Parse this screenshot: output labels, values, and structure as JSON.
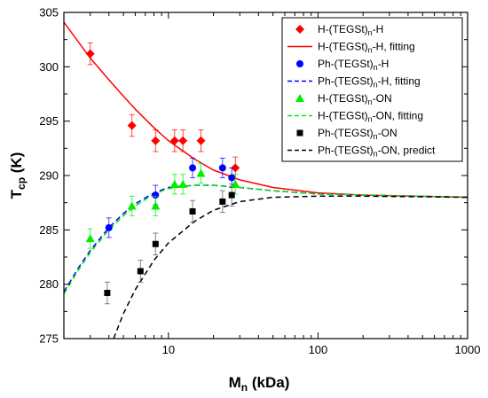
{
  "chart_data": {
    "type": "scatter",
    "x_scale": "log",
    "xlim": [
      2,
      1000
    ],
    "ylim": [
      275,
      305
    ],
    "x_ticks": [
      10,
      100,
      1000
    ],
    "x_tick_labels": [
      "10",
      "100",
      "1000"
    ],
    "y_ticks": [
      275,
      280,
      285,
      290,
      295,
      300,
      305
    ],
    "y_tick_labels": [
      "275",
      "280",
      "285",
      "290",
      "295",
      "300",
      "305"
    ],
    "xlabel": {
      "main": "M",
      "sub": "n",
      "rest": " (kDa)"
    },
    "ylabel": {
      "main": "T",
      "sub": "cp",
      "rest": " (K)"
    },
    "legend_position": "top-right",
    "series": [
      {
        "name": {
          "pre": "H-(TEGSt)",
          "sub": "n",
          "post": "-H"
        },
        "kind": "scatter",
        "marker": "diamond",
        "color": "#ff0000",
        "points": [
          {
            "x": 3.0,
            "y": 301.2,
            "err": 1.0
          },
          {
            "x": 5.7,
            "y": 294.6,
            "err": 1.0
          },
          {
            "x": 8.2,
            "y": 293.2,
            "err": 1.0
          },
          {
            "x": 11.0,
            "y": 293.2,
            "err": 1.0
          },
          {
            "x": 12.5,
            "y": 293.2,
            "err": 1.0
          },
          {
            "x": 16.5,
            "y": 293.2,
            "err": 1.0
          },
          {
            "x": 28.0,
            "y": 290.7,
            "err": 1.0
          }
        ]
      },
      {
        "name": {
          "pre": "H-(TEGSt)",
          "sub": "n",
          "post": "-H, fitting"
        },
        "kind": "line",
        "dash": "solid",
        "color": "#ff0000",
        "points": [
          {
            "x": 2,
            "y": 304.1
          },
          {
            "x": 3,
            "y": 300.8
          },
          {
            "x": 4,
            "y": 298.8
          },
          {
            "x": 5,
            "y": 297.3
          },
          {
            "x": 6,
            "y": 296.1
          },
          {
            "x": 8,
            "y": 294.4
          },
          {
            "x": 10,
            "y": 293.2
          },
          {
            "x": 15,
            "y": 291.5
          },
          {
            "x": 20,
            "y": 290.5
          },
          {
            "x": 30,
            "y": 289.6
          },
          {
            "x": 50,
            "y": 288.9
          },
          {
            "x": 100,
            "y": 288.4
          },
          {
            "x": 200,
            "y": 288.2
          },
          {
            "x": 1000,
            "y": 288.0
          }
        ]
      },
      {
        "name": {
          "pre": "Ph-(TEGSt)",
          "sub": "n",
          "post": "-H"
        },
        "kind": "scatter",
        "marker": "circle",
        "color": "#0000ff",
        "points": [
          {
            "x": 4.0,
            "y": 285.2,
            "err": 0.9
          },
          {
            "x": 8.2,
            "y": 288.2,
            "err": 0.9
          },
          {
            "x": 14.5,
            "y": 290.7,
            "err": 0.9
          },
          {
            "x": 23.0,
            "y": 290.7,
            "err": 0.9
          },
          {
            "x": 26.5,
            "y": 289.8,
            "err": 0.9
          }
        ]
      },
      {
        "name": {
          "pre": "Ph-(TEGSt)",
          "sub": "n",
          "post": "-H, fitting"
        },
        "kind": "line",
        "dash": "dashed",
        "color": "#0000ff",
        "points": [
          {
            "x": 2,
            "y": 279.3
          },
          {
            "x": 2.5,
            "y": 281.5
          },
          {
            "x": 3,
            "y": 283.1
          },
          {
            "x": 4,
            "y": 285.2
          },
          {
            "x": 5,
            "y": 286.5
          },
          {
            "x": 6,
            "y": 287.4
          },
          {
            "x": 8,
            "y": 288.4
          },
          {
            "x": 10,
            "y": 288.9
          },
          {
            "x": 15,
            "y": 289.1
          },
          {
            "x": 20,
            "y": 289.1
          },
          {
            "x": 30,
            "y": 288.9
          },
          {
            "x": 50,
            "y": 288.6
          },
          {
            "x": 100,
            "y": 288.3
          },
          {
            "x": 1000,
            "y": 288.0
          }
        ]
      },
      {
        "name": {
          "pre": "H-(TEGSt)",
          "sub": "n",
          "post": "-ON"
        },
        "kind": "scatter",
        "marker": "triangle",
        "color": "#00ee00",
        "points": [
          {
            "x": 3.0,
            "y": 284.2,
            "err": 0.9
          },
          {
            "x": 5.7,
            "y": 287.2,
            "err": 0.9
          },
          {
            "x": 8.2,
            "y": 287.2,
            "err": 0.9
          },
          {
            "x": 11.0,
            "y": 289.2,
            "err": 0.9
          },
          {
            "x": 12.5,
            "y": 289.2,
            "err": 0.9
          },
          {
            "x": 16.5,
            "y": 290.2,
            "err": 0.9
          },
          {
            "x": 28.0,
            "y": 289.2,
            "err": 0.9
          }
        ]
      },
      {
        "name": {
          "pre": "H-(TEGSt)",
          "sub": "n",
          "post": "-ON, fitting"
        },
        "kind": "line",
        "dash": "dashed",
        "color": "#00ee00",
        "points": [
          {
            "x": 2,
            "y": 279.1
          },
          {
            "x": 2.5,
            "y": 281.3
          },
          {
            "x": 3,
            "y": 282.9
          },
          {
            "x": 4,
            "y": 285.0
          },
          {
            "x": 5,
            "y": 286.3
          },
          {
            "x": 6,
            "y": 287.2
          },
          {
            "x": 8,
            "y": 288.3
          },
          {
            "x": 10,
            "y": 288.8
          },
          {
            "x": 15,
            "y": 289.1
          },
          {
            "x": 20,
            "y": 289.1
          },
          {
            "x": 30,
            "y": 288.9
          },
          {
            "x": 50,
            "y": 288.6
          },
          {
            "x": 100,
            "y": 288.3
          },
          {
            "x": 1000,
            "y": 288.0
          }
        ]
      },
      {
        "name": {
          "pre": "Ph-(TEGSt)",
          "sub": "n",
          "post": "-ON"
        },
        "kind": "scatter",
        "marker": "square",
        "color": "#000000",
        "points": [
          {
            "x": 3.9,
            "y": 279.2,
            "err": 1.0
          },
          {
            "x": 6.5,
            "y": 281.2,
            "err": 1.0
          },
          {
            "x": 8.2,
            "y": 283.7,
            "err": 1.0
          },
          {
            "x": 14.5,
            "y": 286.7,
            "err": 1.0
          },
          {
            "x": 23.0,
            "y": 287.6,
            "err": 1.0
          },
          {
            "x": 26.5,
            "y": 288.2,
            "err": 1.0
          }
        ]
      },
      {
        "name": {
          "pre": "Ph-(TEGSt)",
          "sub": "n",
          "post": "-ON, predict"
        },
        "kind": "line",
        "dash": "dashed",
        "color": "#000000",
        "points": [
          {
            "x": 4.3,
            "y": 275.0
          },
          {
            "x": 5,
            "y": 277.3
          },
          {
            "x": 6,
            "y": 279.5
          },
          {
            "x": 8,
            "y": 282.2
          },
          {
            "x": 10,
            "y": 283.8
          },
          {
            "x": 15,
            "y": 285.8
          },
          {
            "x": 20,
            "y": 286.8
          },
          {
            "x": 30,
            "y": 287.6
          },
          {
            "x": 50,
            "y": 288.0
          },
          {
            "x": 100,
            "y": 288.1
          },
          {
            "x": 200,
            "y": 288.1
          },
          {
            "x": 1000,
            "y": 288.0
          }
        ]
      }
    ]
  }
}
